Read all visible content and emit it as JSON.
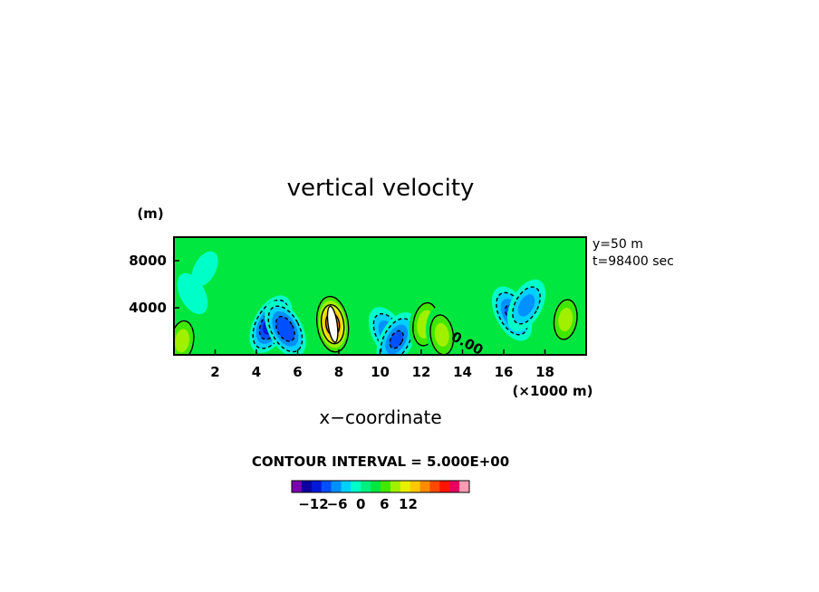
{
  "chart_data": {
    "type": "heatmap",
    "title": "vertical velocity",
    "xlabel": "x−coordinate",
    "x_unit_label": "(×1000 m)",
    "y_unit_label": "(m)",
    "xlim": [
      0,
      20
    ],
    "ylim": [
      0,
      10000
    ],
    "x_ticks": [
      2,
      4,
      6,
      8,
      10,
      12,
      14,
      16,
      18
    ],
    "x_tick_labels": [
      "2",
      "4",
      "6",
      "8",
      "10",
      "12",
      "14",
      "16",
      "18"
    ],
    "y_ticks": [
      4000,
      8000
    ],
    "y_tick_labels": [
      "4000",
      "8000"
    ],
    "info_lines": [
      "y=50 m",
      "t=98400 sec"
    ],
    "contour_interval_text": "CONTOUR INTERVAL = 5.000E+00",
    "contour_label": "0.00",
    "colorbar": {
      "min": -15,
      "max": 15,
      "step": 2.5,
      "tick_values": [
        -12,
        -6,
        0,
        6,
        12
      ],
      "tick_labels": [
        "−12",
        "−6",
        "0",
        "6",
        "12"
      ],
      "colors": [
        "#7a00b0",
        "#0c00a0",
        "#0018d8",
        "#0050ff",
        "#0090ff",
        "#00d0ff",
        "#00ffc8",
        "#00f080",
        "#00e840",
        "#40e800",
        "#a0f000",
        "#e8f000",
        "#ffc800",
        "#ff8c00",
        "#ff4800",
        "#ff1400",
        "#e80060",
        "#ff9cb4"
      ]
    },
    "features": [
      {
        "kind": "updraft",
        "x": 0.4,
        "z": 1200,
        "w": 8
      },
      {
        "kind": "downdraft",
        "x": 4.7,
        "z": 2600,
        "w": -14
      },
      {
        "kind": "downdraft",
        "x": 5.4,
        "z": 2200,
        "w": -12
      },
      {
        "kind": "updraft",
        "x": 7.7,
        "z": 2600,
        "w": 17
      },
      {
        "kind": "downdraft",
        "x": 10.4,
        "z": 1800,
        "w": -9
      },
      {
        "kind": "downdraft",
        "x": 10.8,
        "z": 1300,
        "w": -10
      },
      {
        "kind": "updraft",
        "x": 12.2,
        "z": 2600,
        "w": 9
      },
      {
        "kind": "updraft",
        "x": 13.0,
        "z": 1700,
        "w": 8
      },
      {
        "kind": "downdraft",
        "x": 16.4,
        "z": 3500,
        "w": -10
      },
      {
        "kind": "downdraft",
        "x": 17.1,
        "z": 4200,
        "w": -8
      },
      {
        "kind": "updraft",
        "x": 19.0,
        "z": 3000,
        "w": 8
      },
      {
        "kind": "downdraft",
        "x": 1.5,
        "z": 7300,
        "w": -3
      },
      {
        "kind": "downdraft",
        "x": 0.9,
        "z": 5200,
        "w": -4
      }
    ]
  }
}
